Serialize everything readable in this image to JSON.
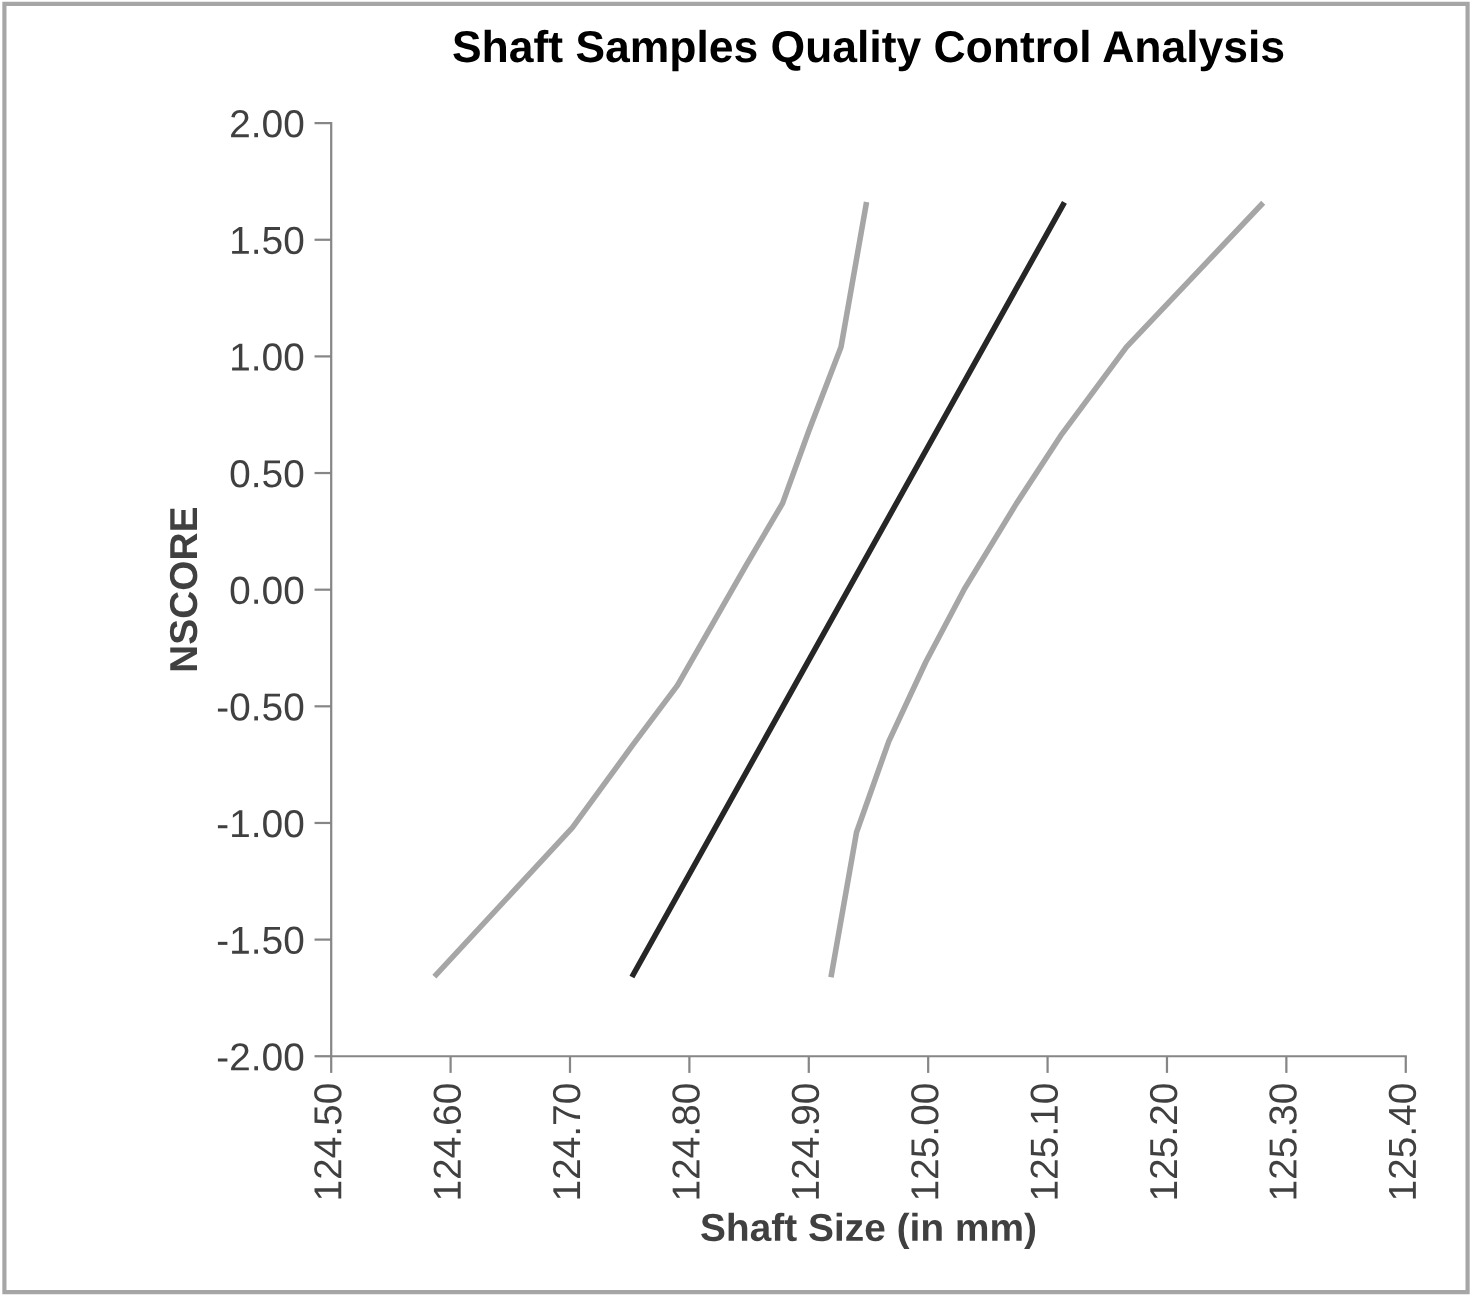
{
  "chart_data": {
    "type": "line",
    "title": "Shaft Samples Quality Control Analysis",
    "xlabel": "Shaft Size (in mm)",
    "ylabel": "NSCORE",
    "series": [
      {
        "color": "#a6a6a6",
        "x": [
          124.588,
          124.702,
          124.752,
          124.79,
          124.847,
          124.878,
          124.9,
          124.927,
          124.948
        ],
        "values": [
          -1.65,
          -1.02,
          -0.67,
          -0.41,
          0.1,
          0.37,
          0.68,
          1.04,
          1.65
        ]
      },
      {
        "color": "#262626",
        "x": [
          124.753,
          125.113
        ],
        "values": [
          -1.65,
          1.65
        ]
      },
      {
        "color": "#a6a6a6",
        "x": [
          124.919,
          124.94,
          124.967,
          124.998,
          125.03,
          125.074,
          125.111,
          125.166,
          125.279
        ],
        "values": [
          -1.65,
          -1.04,
          -0.65,
          -0.31,
          0.0,
          0.37,
          0.66,
          1.04,
          1.65
        ]
      }
    ],
    "xlim": [
      124.5,
      125.4
    ],
    "xticks": [
      {
        "value": 124.5,
        "label": "124.50"
      },
      {
        "value": 124.6,
        "label": "124.60"
      },
      {
        "value": 124.7,
        "label": "124.70"
      },
      {
        "value": 124.8,
        "label": "124.80"
      },
      {
        "value": 124.9,
        "label": "124.90"
      },
      {
        "value": 125.0,
        "label": "125.00"
      },
      {
        "value": 125.1,
        "label": "125.10"
      },
      {
        "value": 125.2,
        "label": "125.20"
      },
      {
        "value": 125.3,
        "label": "125.30"
      },
      {
        "value": 125.4,
        "label": "125.40"
      }
    ],
    "ylim": [
      -2,
      2
    ],
    "yticks": [
      {
        "value": -2,
        "label": "-2.00"
      },
      {
        "value": -1.5,
        "label": "-1.50"
      },
      {
        "value": -1,
        "label": "-1.00"
      },
      {
        "value": -0.5,
        "label": "-0.50"
      },
      {
        "value": 0,
        "label": "0.00"
      },
      {
        "value": 0.5,
        "label": "0.50"
      },
      {
        "value": 1,
        "label": "1.00"
      },
      {
        "value": 1.5,
        "label": "1.50"
      },
      {
        "value": 2,
        "label": "2.00"
      }
    ],
    "grid": false,
    "legend": false,
    "marker": "none",
    "line_style": "solid"
  }
}
